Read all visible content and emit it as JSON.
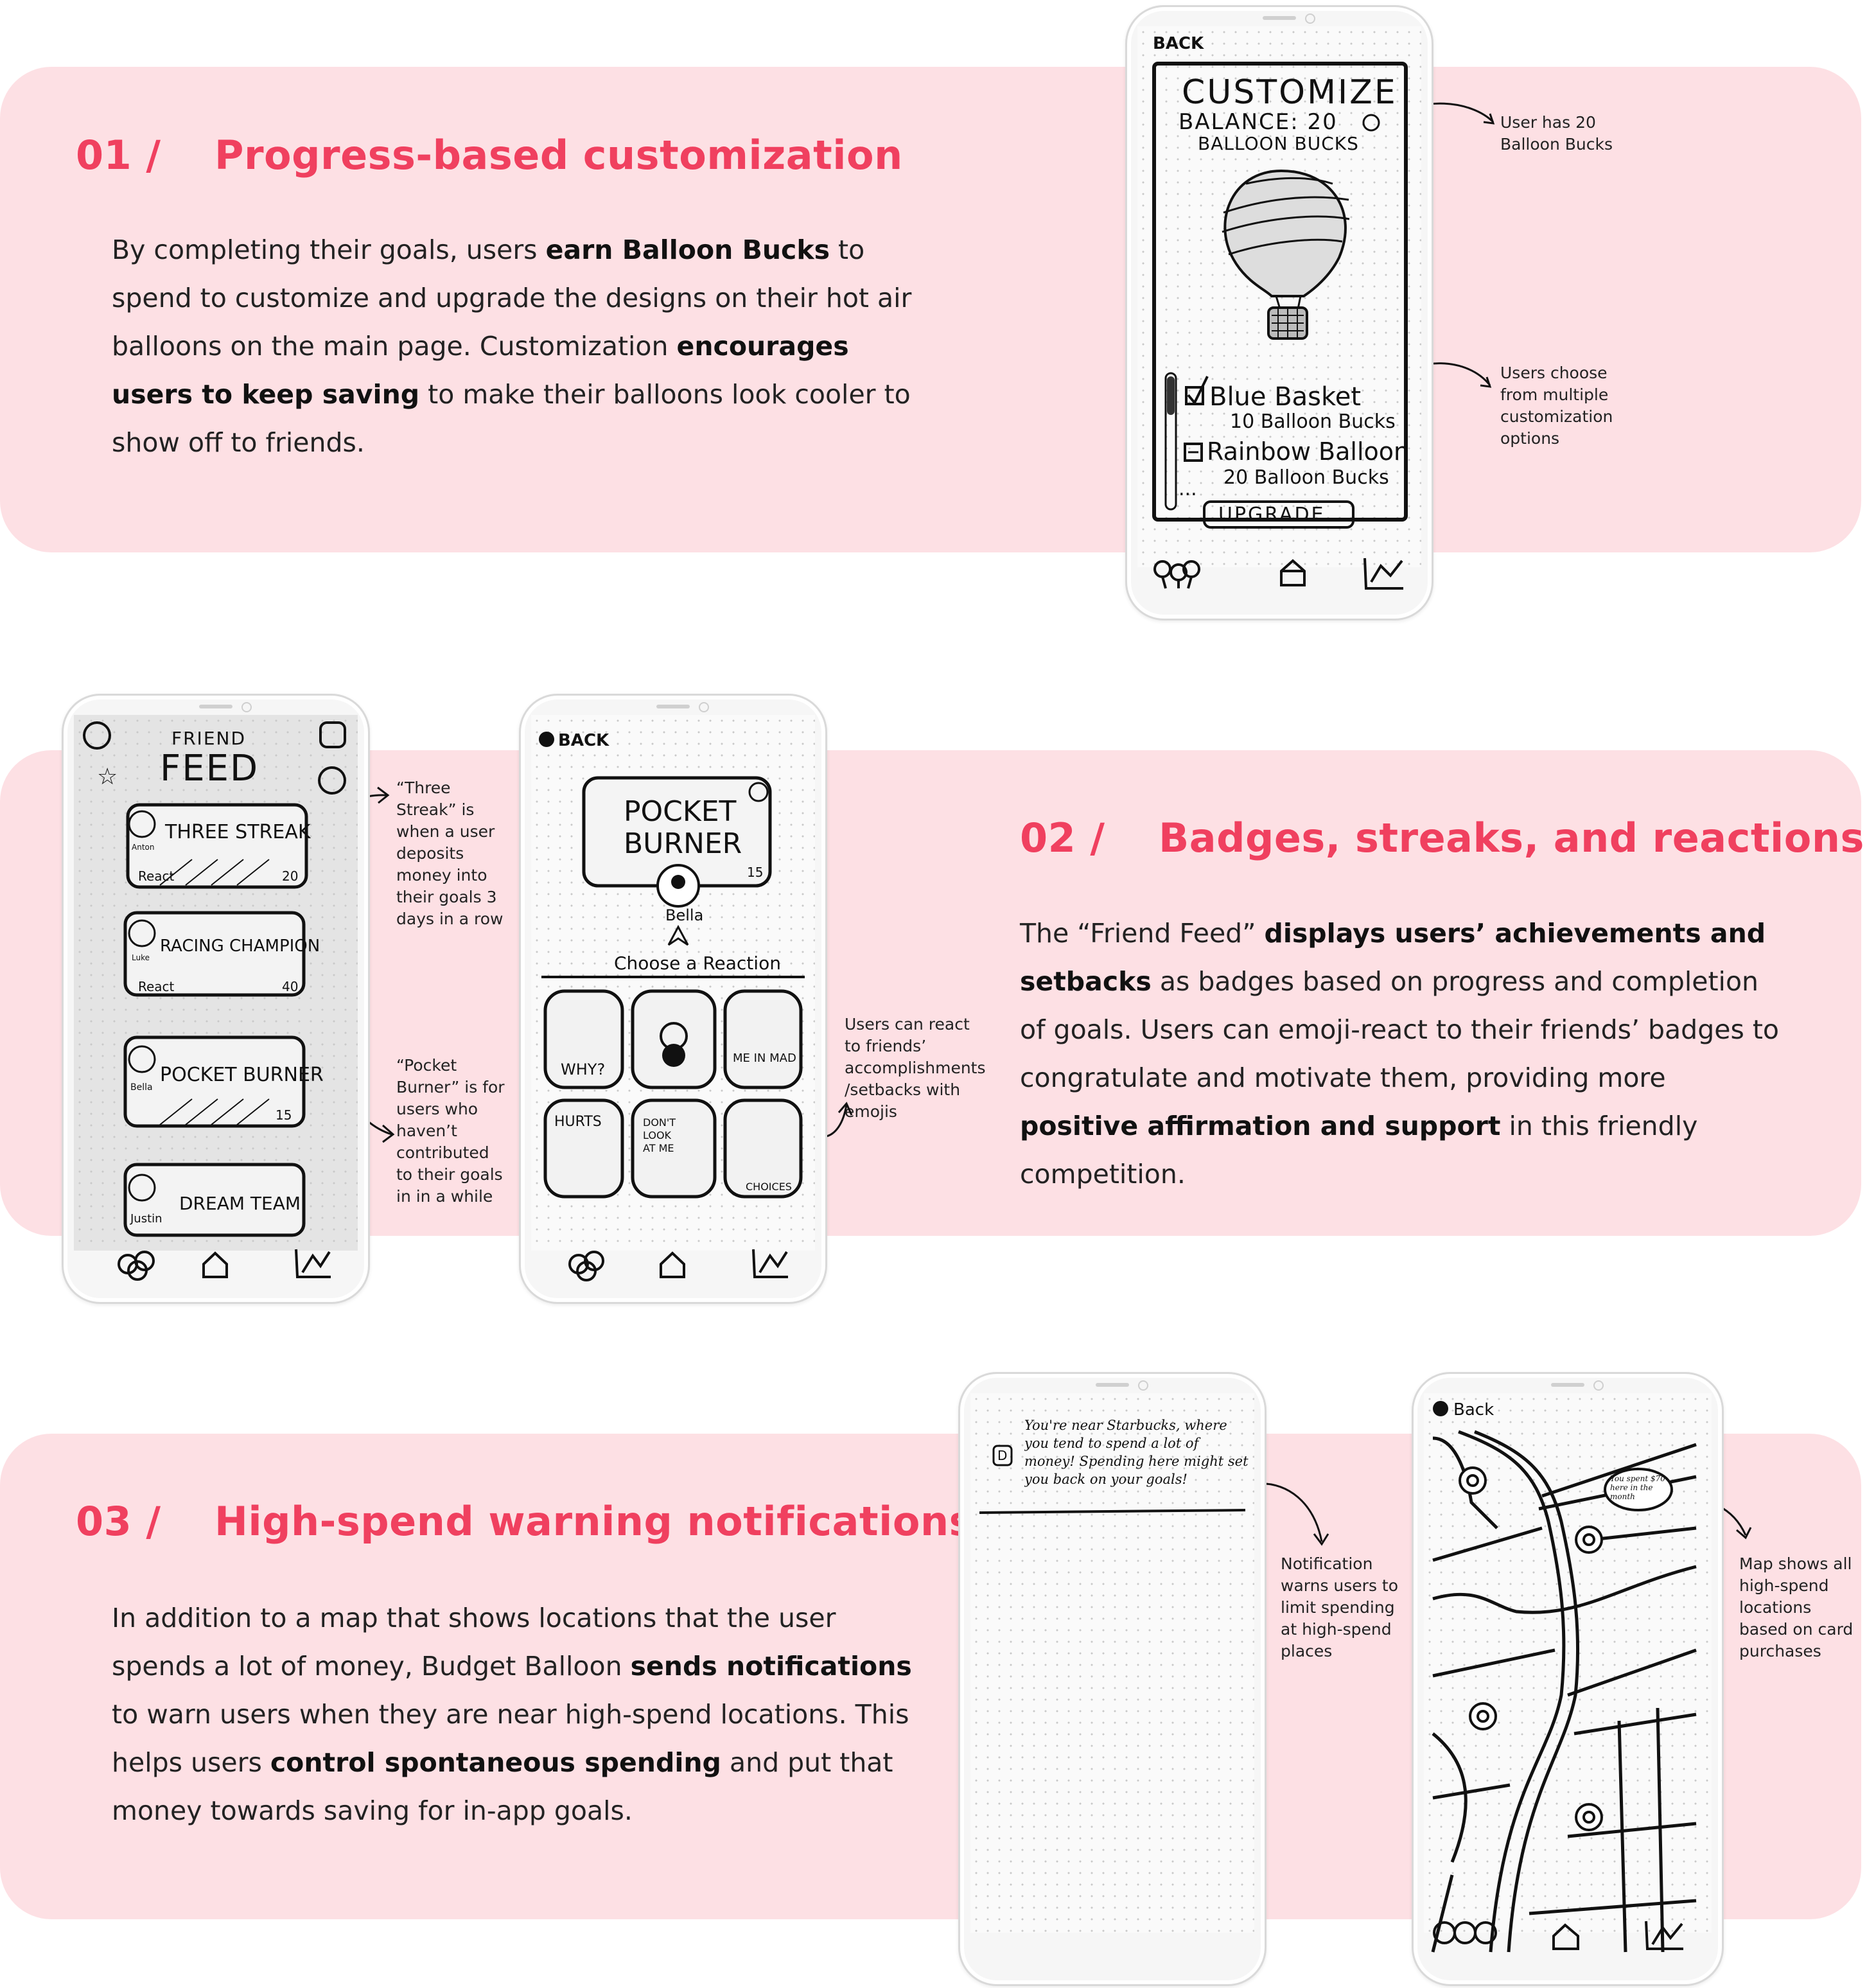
{
  "sections": [
    {
      "number": "01 /",
      "title": "Progress-based customization",
      "paragraph": [
        {
          "t": "By completing their goals, users "
        },
        {
          "t": "earn Balloon Bucks",
          "b": true
        },
        {
          "t": " to spend to customize and upgrade the designs on their hot air balloons on the main page. Customization "
        },
        {
          "t": "encourages users to keep saving",
          "b": true
        },
        {
          "t": " to make their balloons look cooler to show off to friends."
        }
      ],
      "notes": [
        "User has 20 Balloon Bucks",
        "Users choose from multiple customization options"
      ]
    },
    {
      "number": "02 /",
      "title": "Badges, streaks, and reactions",
      "paragraph": [
        {
          "t": "The “Friend Feed” "
        },
        {
          "t": "displays users’ achievements and setbacks",
          "b": true
        },
        {
          "t": " as badges based on progress and completion of goals. Users can emoji-react to their friends’ badges to congratulate and motivate them, providing more "
        },
        {
          "t": "positive affirmation and support",
          "b": true
        },
        {
          "t": " in this friendly competition."
        }
      ],
      "notes": [
        "“Three Streak” is when a user deposits money into their goals 3 days in a row",
        "“Pocket Burner” is for users who haven’t contributed to their goals in in a while",
        "Users can react to friends’ accomplishments /setbacks with emojis"
      ]
    },
    {
      "number": "03 /",
      "title": "High-spend warning notifications",
      "paragraph": [
        {
          "t": "In addition to a map that shows locations that the user spends a lot of money, Budget Balloon "
        },
        {
          "t": "sends notifications",
          "b": true
        },
        {
          "t": " to warn users when they are near high-spend locations. This helps users "
        },
        {
          "t": "control spontaneous spending",
          "b": true
        },
        {
          "t": " and put that money towards saving for in-app goals."
        }
      ],
      "notes": [
        "Notification warns users to limit spending at high-spend places",
        "Map shows all high-spend locations based on card purchases"
      ]
    }
  ],
  "sketches": {
    "customize": {
      "back": "BACK",
      "title": "CUSTOMIZE",
      "balance": "BALANCE: 20",
      "balance_unit": "BALLOON BUCKS",
      "options": [
        {
          "name": "Blue Basket",
          "price": "10 Balloon Bucks",
          "checked": true
        },
        {
          "name": "Rainbow Balloon",
          "price": "20 Balloon Bucks",
          "checked": false
        }
      ],
      "more": "...",
      "button": "UPGRADE"
    },
    "feed": {
      "title_top": "FRIEND",
      "title": "FEED",
      "cards": [
        {
          "title": "THREE STREAK",
          "user": "Anton",
          "react": "React",
          "count": "20"
        },
        {
          "title": "RACING CHAMPION",
          "user": "Luke",
          "react": "React",
          "count": "40"
        },
        {
          "title": "POCKET BURNER",
          "user": "Bella",
          "react": "",
          "count": "15"
        },
        {
          "title": "DREAM TEAM",
          "user": "Justin",
          "react": "",
          "count": ""
        }
      ]
    },
    "reaction": {
      "back": "BACK",
      "badge": "POCKET BURNER",
      "count": "15",
      "user": "Bella",
      "prompt": "Choose a Reaction",
      "emojis": [
        "WHY?",
        "",
        "ME IN MAD",
        "HURTS",
        "DON'T LOOK AT ME",
        "CHOICES"
      ]
    },
    "notification": {
      "text": "You're near Starbucks, where you tend to spend a lot of money! Spending here might set you back on your goals!",
      "icon": "D"
    },
    "map": {
      "back": "Back",
      "bubble": "You spent $70 here in the month"
    }
  }
}
